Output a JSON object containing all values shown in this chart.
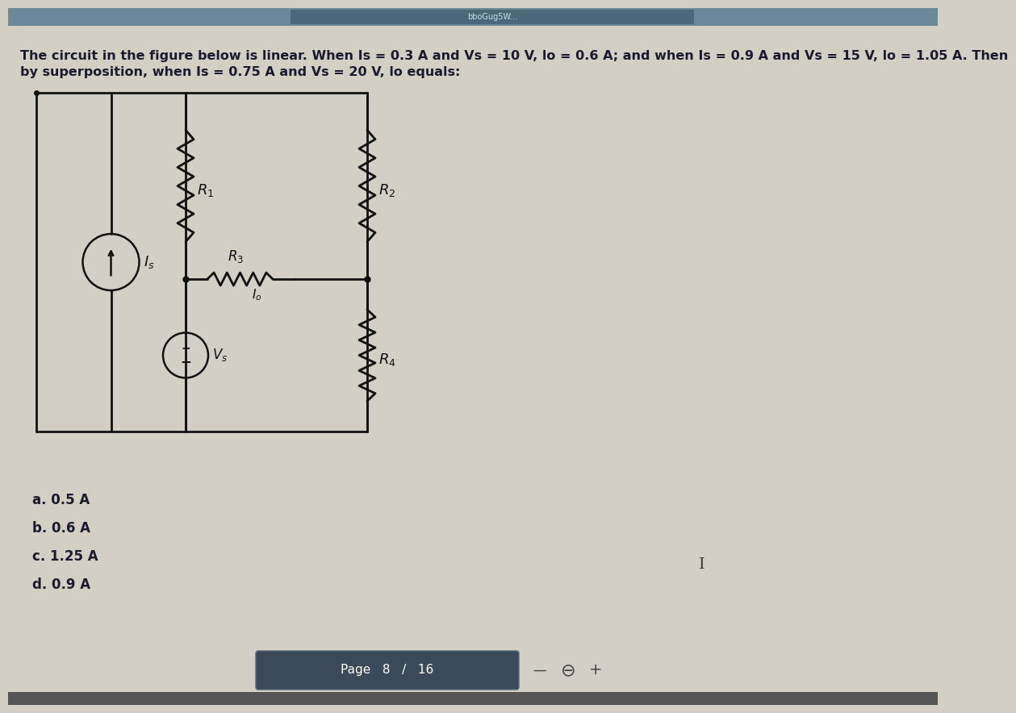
{
  "bg_color": "#d4cfc4",
  "top_bar_color": "#5a7a8a",
  "content_bg": "#d4cfc4",
  "text_color": "#1a1a2e",
  "circuit_color": "#111111",
  "question_text_line1": "The circuit in the figure below is linear. When Is = 0.3 A and Vs = 10 V, lo = 0.6 A; and when Is = 0.9 A and Vs = 15 V, lo = 1.05 A. Then",
  "question_text_line2": "by superposition, when Is = 0.75 A and Vs = 20 V, lo equals:",
  "options": [
    "a. 0.5 A",
    "b. 0.6 A",
    "c. 1.25 A",
    "d. 0.9 A"
  ],
  "page_label": "Page   8   /   16",
  "R1_label": "R",
  "R2_label": "R",
  "R3_label": "R",
  "R4_label": "R",
  "R1_sub": "1",
  "R2_sub": "2",
  "R3_sub": "3",
  "R4_sub": "4",
  "Is_label": "I",
  "Is_sub": "s",
  "Vs_label": "V",
  "Vs_sub": "s",
  "Io_label": "I",
  "Io_sub": "o",
  "page_bar_color": "#3a4a5a",
  "browser_bar_color": "#6a8898"
}
